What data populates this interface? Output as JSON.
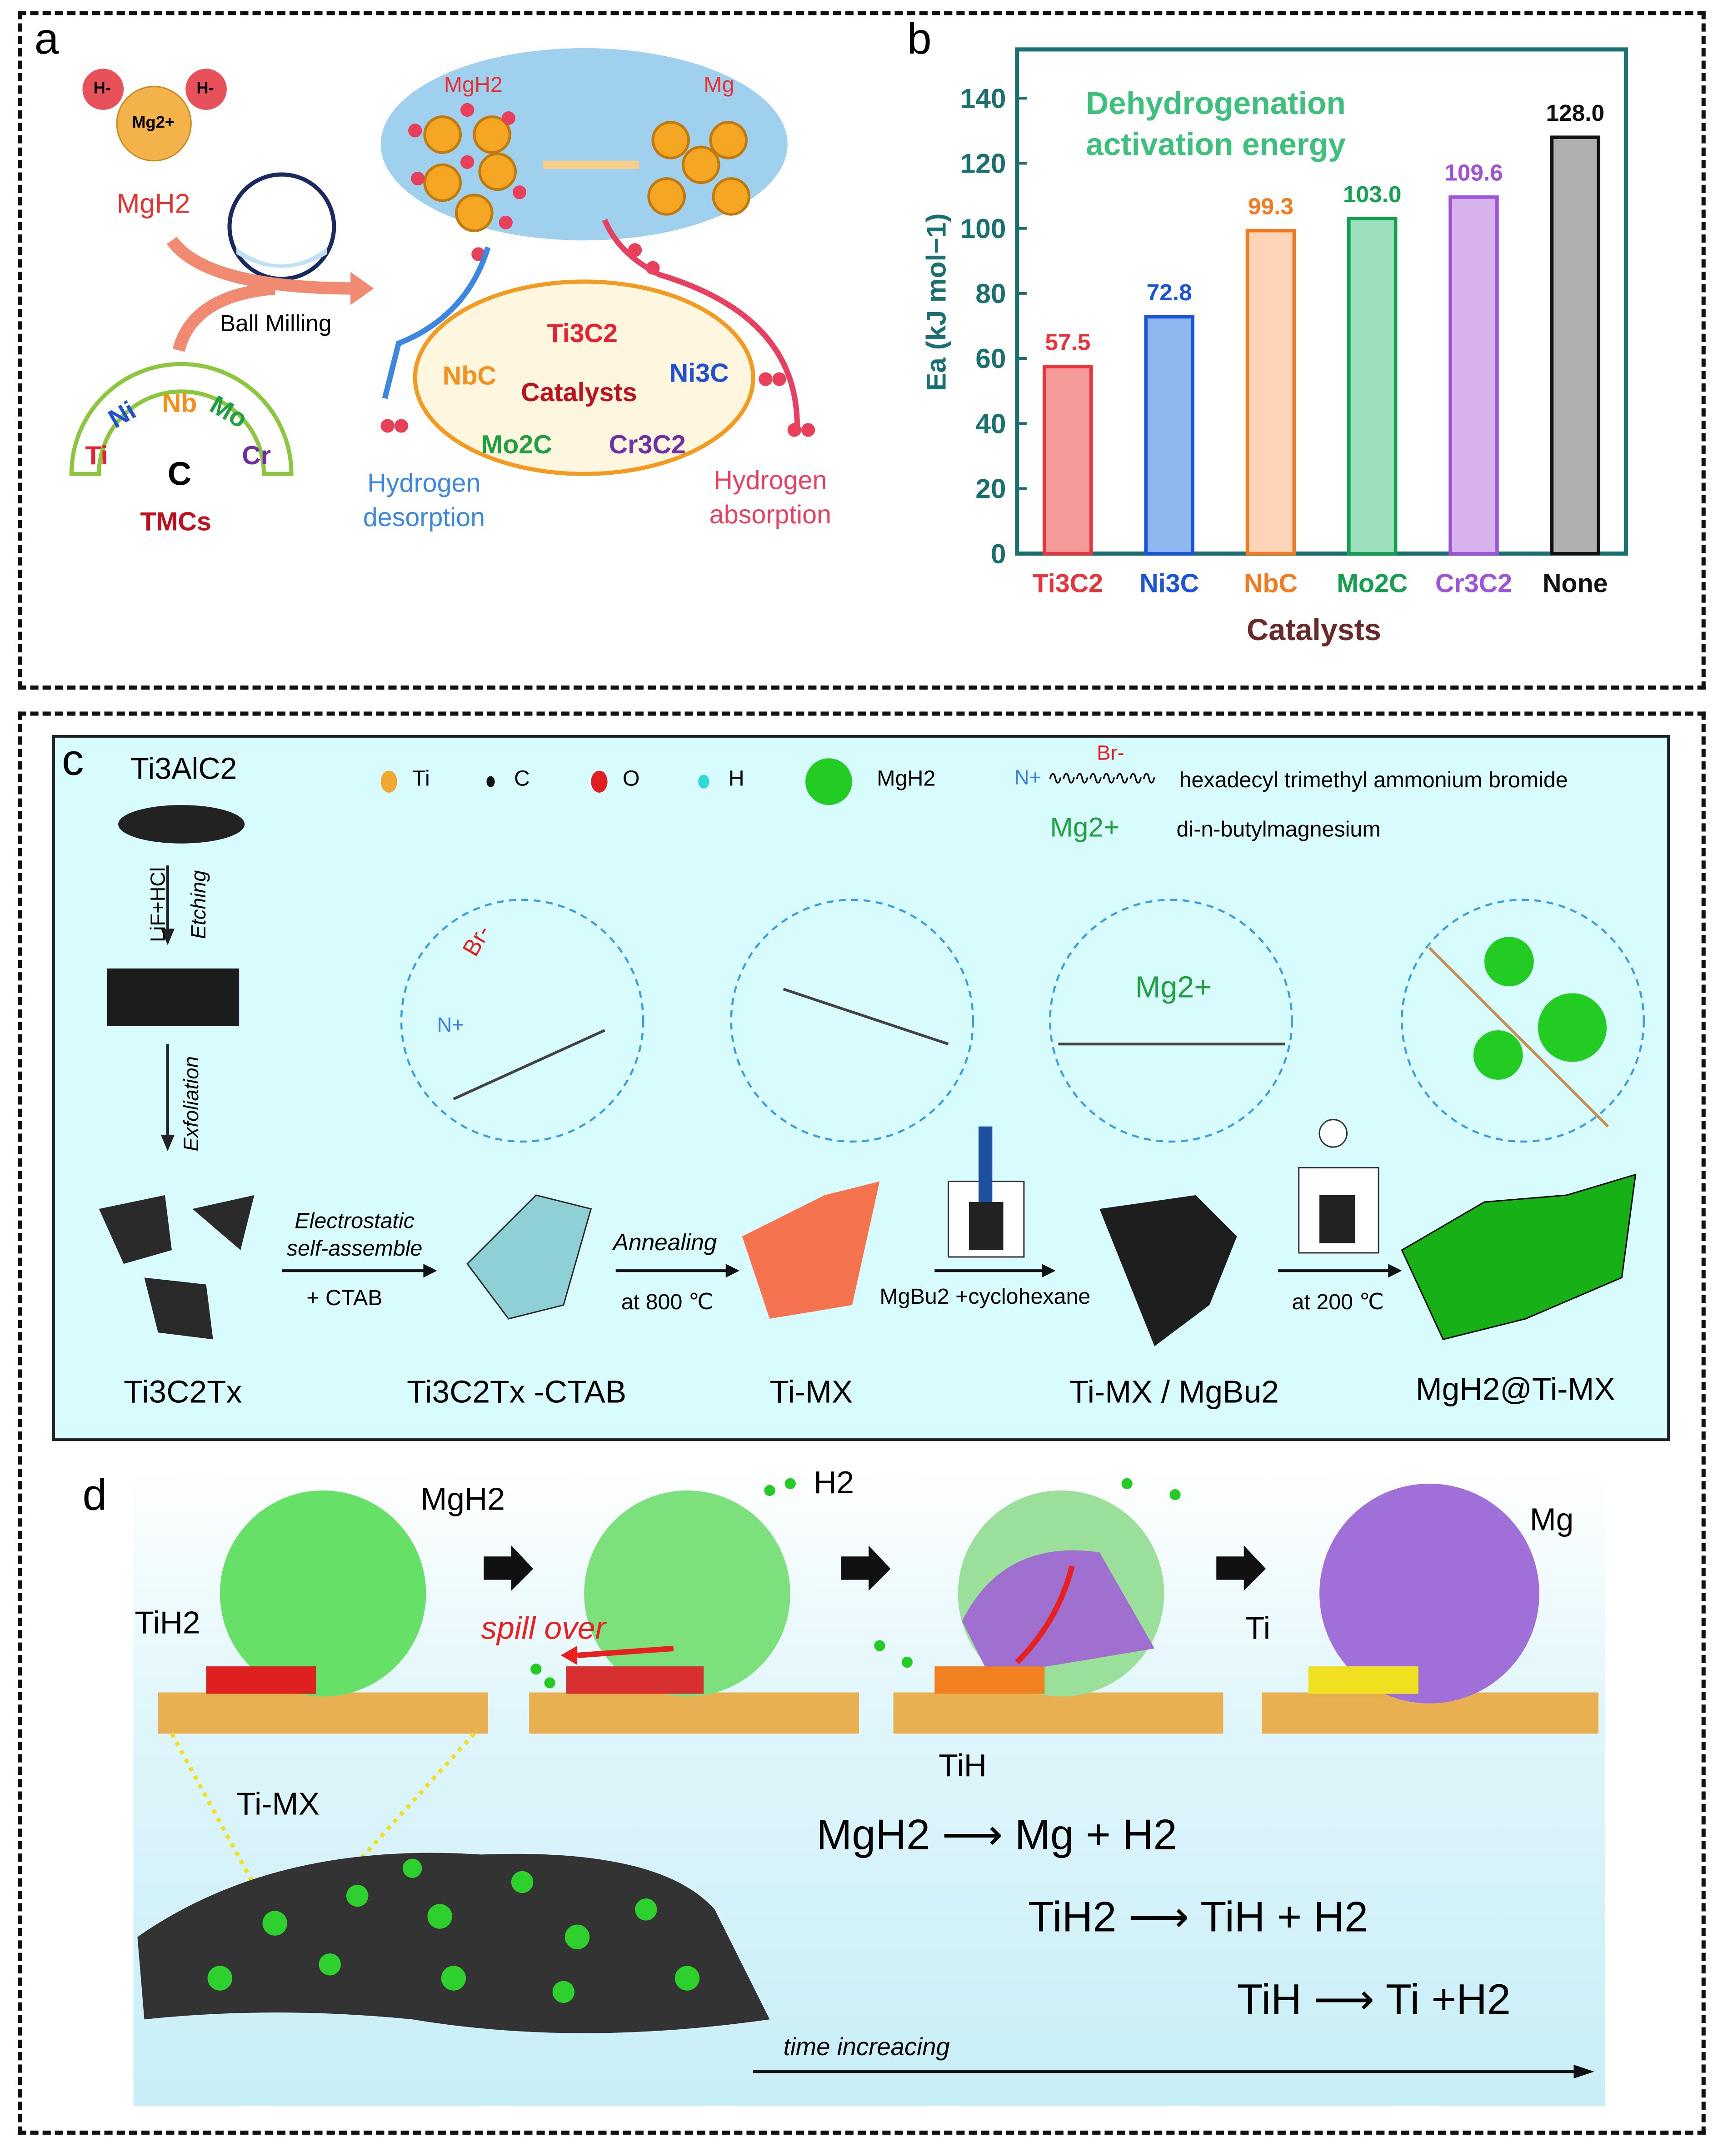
{
  "panel_a": {
    "label": "a",
    "ions": {
      "h_left": "H-",
      "h_right": "H-",
      "mg": "Mg2+"
    },
    "mgh2_label": "MgH2",
    "ball_milling": "Ball Milling",
    "tmc_elements": [
      "Ti",
      "Ni",
      "Nb",
      "Mo",
      "Cr"
    ],
    "tmc_center": "C",
    "tmc_caption": "TMCs",
    "ellipse_left": "MgH2",
    "ellipse_right": "Mg",
    "catalysts_center": "Catalysts",
    "catalysts": [
      "Ti3C2",
      "NbC",
      "Ni3C",
      "Mo2C",
      "Cr3C2"
    ],
    "desorption": "Hydrogen desorption",
    "absorption": "Hydrogen absorption"
  },
  "panel_b": {
    "label": "b"
  },
  "chart_data": {
    "type": "bar",
    "title": "Dehydrogenation activation energy",
    "xlabel": "Catalysts",
    "ylabel": "Ea (kJ mol−1)",
    "categories": [
      "Ti3C2",
      "Ni3C",
      "NbC",
      "Mo2C",
      "Cr3C2",
      "None"
    ],
    "values": [
      57.5,
      72.8,
      99.3,
      103.0,
      109.6,
      128.0
    ],
    "value_labels": [
      "57.5",
      "72.8",
      "99.3",
      "103.0",
      "109.6",
      "128.0"
    ],
    "yticks": [
      0,
      20,
      40,
      60,
      80,
      100,
      120,
      140
    ],
    "ylim": [
      0,
      155
    ],
    "grid": false,
    "colors": {
      "fill": [
        "#f59a9a",
        "#8fb8f0",
        "#fdd4b8",
        "#9ee0bd",
        "#d6b3ec",
        "#b0b0b0"
      ],
      "stroke": [
        "#e8343c",
        "#1a55d8",
        "#f47a20",
        "#14a050",
        "#a052d8",
        "#111111"
      ],
      "axis": "#1a7070",
      "title": "#3cc07c",
      "xlabel": "#6b2a2a"
    }
  },
  "panel_c": {
    "label": "c",
    "legend": {
      "ti": "Ti",
      "c": "C",
      "o": "O",
      "h": "H",
      "mgh2": "MgH2"
    },
    "ctab_br": "Br-",
    "ctab_n": "N+",
    "ctab_name": "hexadecyl trimethyl ammonium bromide",
    "mg_ion": "Mg2+",
    "dbm_name": "di-n-butylmagnesium",
    "precursor": "Ti3AlC2",
    "etch_reagent": "LiF+HCl",
    "etching": "Etching",
    "exfoliation": "Exfoliation",
    "step1_top": "Electrostatic self-assemble",
    "step1_bottom": "+ CTAB",
    "step2_top": "Annealing",
    "step2_bottom": "at 800 ℃",
    "step3": "MgBu2 +cyclohexane",
    "step4": "at 200 ℃",
    "zoom_br": "Br-",
    "zoom_n": "N+",
    "zoom_mg": "Mg2+",
    "stages": [
      "Ti3C2Tx",
      "Ti3C2Tx -CTAB",
      "Ti-MX",
      "Ti-MX / MgBu2",
      "MgH2@Ti-MX"
    ]
  },
  "panel_d": {
    "label": "d",
    "mgh2": "MgH2",
    "tih2": "TiH2",
    "ti_mx": "Ti-MX",
    "h2": "H2",
    "spill_over": "spill over",
    "tih": "TiH",
    "ti": "Ti",
    "mg": "Mg",
    "eq1": "MgH2 ⟶ Mg + H2",
    "eq2": "TiH2 ⟶ TiH + H2",
    "eq3": "TiH ⟶ Ti +H2",
    "time": "time increacing"
  }
}
